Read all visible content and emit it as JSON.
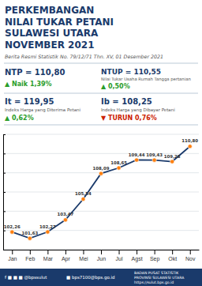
{
  "chart_data": {
    "type": "line",
    "title": "PERKEMBANGAN\nNILAI TUKAR PETANI\nSULAWESI UTARA\nNOVEMBER 2021",
    "subtitle": "Berita Resmi Statistik No. 79/12/71 Thn. XV, 01 Desember 2021",
    "annotations": [
      {
        "text": "NTP = 110,80"
      },
      {
        "text": "▲ Naik 1,39%",
        "color": "#2a9d2a"
      },
      {
        "text": "NTUP = 110,55"
      },
      {
        "text": "Nilai Tukar Usaha Rumah Tangga pertanian"
      },
      {
        "text": "▲  0,50%",
        "color": "#2a9d2a"
      },
      {
        "text": "It = 119,95"
      },
      {
        "text": "Indeks Harga yang Diterima Petani"
      },
      {
        "text": "▲ 0,62%",
        "color": "#2a9d2a"
      },
      {
        "text": "Ib = 108,25"
      },
      {
        "text": "Indeks Harga yang Dibayar Petani"
      },
      {
        "text": "▼ TURUN 0,76%",
        "color": "#cc2200"
      },
      {
        "text": "f  ■  ■  ■   @bpssulut"
      },
      {
        "text": "■  bps7100@bps.go.id"
      },
      {
        "text": "BADAN PUSAT STATISTIK\nPROVINSI SULAWESI UTARA\nhttps://sulut.bps.go.id"
      }
    ],
    "categories": [
      "Jan",
      "Feb",
      "Mar",
      "Apr",
      "Mei",
      "Jun",
      "Jul",
      "Agst",
      "Sep",
      "Okt",
      "Nov"
    ],
    "values": [
      102.26,
      101.63,
      102.27,
      103.47,
      105.54,
      108.09,
      108.65,
      109.44,
      109.43,
      109.28,
      110.8
    ],
    "value_labels": [
      "102,26",
      "101,63",
      "102,27",
      "103,47",
      "105,54",
      "108,09",
      "108,65",
      "109,44",
      "109,43",
      "109,28",
      "110,80"
    ],
    "data_labels": true,
    "color": "#1a3a6b",
    "marker": "circle",
    "ylim": [
      100.5,
      112.0
    ],
    "yticks": [
      100.5,
      102.41666666666667,
      104.33333333333333,
      106.25,
      108.16666666666667,
      110.08333333333333,
      112.0
    ],
    "grid": true,
    "tick_labels": "x"
  }
}
